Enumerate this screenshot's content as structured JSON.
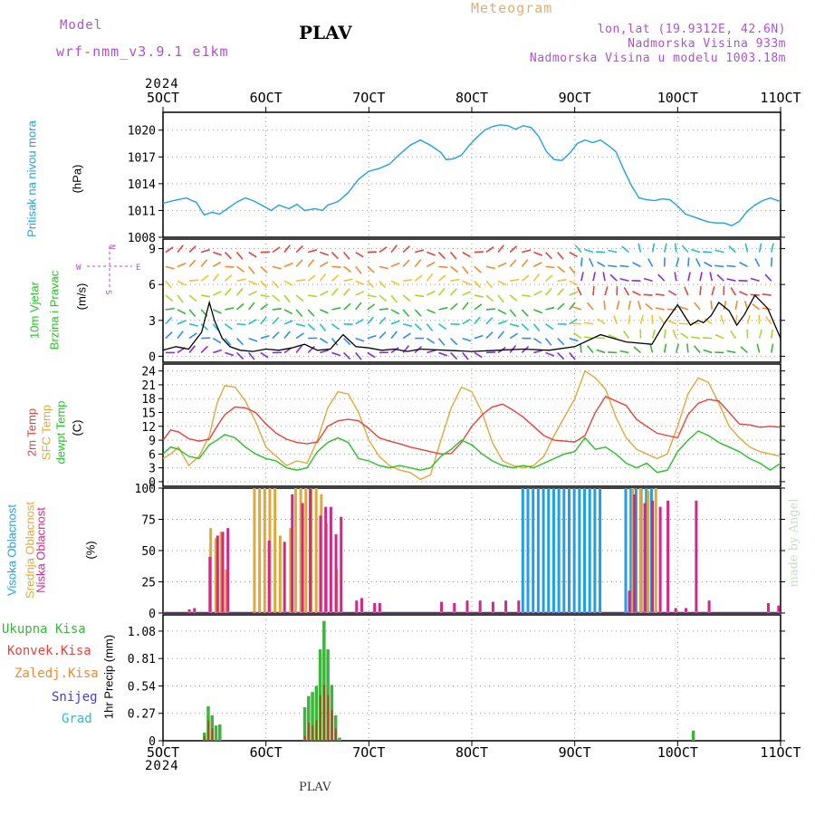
{
  "header": {
    "model_label": "Model",
    "model_name": "wrf-nmm_v3.9.1 e1km",
    "title": "PLAV",
    "meteogram": "Meteogram",
    "lonlat": "lon,lat (19.9312E, 42.6N)",
    "altitude": "Nadmorska Visina 933m",
    "model_altitude": "Nadmorska Visina u modelu 1003.18m",
    "year_top": "2024",
    "year_bottom": "2024",
    "footer_station": "PLAV",
    "credit": "made by Angel"
  },
  "colors": {
    "pressure": "#1fa0e6",
    "t2m": "#e8423a",
    "sfc": "#e0a83c",
    "dew": "#26c226",
    "high": "#1fa0e6",
    "mid": "#e0a83c",
    "low": "#d2268a",
    "total": "#3bb53b",
    "conv": "#e8423a",
    "frozen": "#f28b2e",
    "snow": "#3c3ce0",
    "graupel": "#22c1c3",
    "model": "#b050d8"
  },
  "chart_data": [
    {
      "panel": "pressure",
      "type": "line",
      "x_ticks": [
        "5OCT",
        "6OCT",
        "7OCT",
        "8OCT",
        "9OCT",
        "10OCT",
        "11OCT"
      ],
      "ylim": [
        1008,
        1022
      ],
      "y_ticks": [
        1008,
        1011,
        1014,
        1017,
        1020
      ],
      "ylabel_main": "Pritisak na nivou mora",
      "ylabel_unit": "(hPa)",
      "series": [
        {
          "x": [
            0,
            0.4,
            0.9,
            1.3,
            1.6,
            1.9,
            2.2,
            2.5,
            2.9,
            3.2,
            3.5,
            3.9,
            4.2,
            4.5,
            4.9,
            5.2,
            5.5,
            5.9,
            6.2,
            6.4,
            6.8,
            7.2,
            7.6,
            8.0,
            8.4,
            8.8,
            9.2,
            9.6,
            10.0,
            10.4,
            10.8,
            11.0,
            11.3,
            11.6,
            11.9,
            12.2,
            12.5,
            12.8,
            13.1,
            13.4,
            13.7,
            14.0,
            14.3,
            14.6,
            14.9,
            15.2,
            15.5,
            15.8,
            16.1,
            16.4,
            16.7,
            17.0,
            17.3,
            17.6,
            17.9,
            18.2,
            18.5,
            18.8,
            19.1,
            19.4,
            19.7,
            20.0,
            20.3,
            20.6,
            20.9,
            21.2,
            21.5,
            21.8,
            22.1,
            22.4,
            22.7,
            23.0,
            23.3,
            23.6,
            24.0
          ],
          "values": [
            1011.8,
            1012.1,
            1012.4,
            1011.9,
            1010.5,
            1010.8,
            1010.6,
            1011.2,
            1012.0,
            1012.4,
            1012.1,
            1011.5,
            1011.0,
            1011.6,
            1011.2,
            1011.7,
            1011.0,
            1011.2,
            1011.0,
            1011.6,
            1012.0,
            1013.0,
            1014.5,
            1015.4,
            1015.7,
            1016.2,
            1017.3,
            1018.3,
            1018.9,
            1018.3,
            1017.5,
            1016.7,
            1016.8,
            1017.2,
            1018.3,
            1019.2,
            1020.0,
            1020.4,
            1020.6,
            1020.5,
            1020.1,
            1020.5,
            1020.3,
            1019.3,
            1017.6,
            1016.7,
            1016.6,
            1017.4,
            1018.5,
            1018.9,
            1018.6,
            1018.9,
            1018.3,
            1017.6,
            1015.6,
            1013.8,
            1012.4,
            1012.2,
            1012.1,
            1012.3,
            1012.2,
            1011.5,
            1010.6,
            1010.3,
            1010.0,
            1009.7,
            1009.6,
            1009.6,
            1009.3,
            1009.8,
            1010.9,
            1011.6,
            1012.1,
            1012.4,
            1012.0
          ]
        }
      ]
    },
    {
      "panel": "wind",
      "type": "line",
      "ylim": [
        -0.5,
        9.8
      ],
      "y_ticks": [
        0,
        3,
        6,
        9
      ],
      "ylabel_green": "10m Vjetar",
      "ylabel_green2": "Brzina i Pravac",
      "ylabel_unit": "(m/s)",
      "compass": {
        "n": "N",
        "s": "S",
        "e": "E",
        "w": "W"
      },
      "series": [
        {
          "name": "speed",
          "x": [
            0,
            0.5,
            1.0,
            1.5,
            1.8,
            2.0,
            2.3,
            2.6,
            3.0,
            3.5,
            4.0,
            4.5,
            5.0,
            5.5,
            6.0,
            6.5,
            7.0,
            7.5,
            8.0,
            8.5,
            9.0,
            9.5,
            10.0,
            11.0,
            12.0,
            13.0,
            14.0,
            15.0,
            16.0,
            17.0,
            18.0,
            19.0,
            19.5,
            20.0,
            20.5,
            20.8,
            21.0,
            21.3,
            21.6,
            22.0,
            22.3,
            22.6,
            23.0,
            23.5,
            24.0
          ],
          "values": [
            0.5,
            0.8,
            0.6,
            2.0,
            4.5,
            3.0,
            1.5,
            0.8,
            0.5,
            0.4,
            0.6,
            0.5,
            0.7,
            1.0,
            0.5,
            0.6,
            1.8,
            0.8,
            0.7,
            0.5,
            0.6,
            0.4,
            0.6,
            0.5,
            0.4,
            0.5,
            0.6,
            0.5,
            0.8,
            1.8,
            1.2,
            1.0,
            2.8,
            4.3,
            2.6,
            3.0,
            2.8,
            3.4,
            4.5,
            3.8,
            2.6,
            3.5,
            5.1,
            4.0,
            1.5
          ]
        }
      ]
    },
    {
      "panel": "temperature",
      "type": "line",
      "ylim": [
        -1,
        25.5
      ],
      "y_ticks": [
        0,
        3,
        6,
        9,
        12,
        15,
        18,
        21,
        24
      ],
      "ylabel_red": "2m Temp",
      "ylabel_orange": "SFC Temp",
      "ylabel_green": "dewpt Temp",
      "ylabel_unit": "(C)",
      "series": [
        {
          "name": "2m Temp",
          "x": [
            0,
            0.3,
            0.6,
            1.0,
            1.4,
            1.8,
            2.1,
            2.4,
            2.8,
            3.2,
            3.6,
            4.0,
            4.4,
            4.8,
            5.2,
            5.6,
            6.0,
            6.4,
            6.8,
            7.2,
            7.6,
            8.0,
            8.4,
            8.8,
            9.2,
            9.6,
            10.0,
            10.4,
            10.8,
            11.2,
            11.6,
            12.0,
            12.4,
            12.8,
            13.2,
            13.6,
            14.0,
            14.4,
            14.8,
            15.2,
            15.6,
            16.0,
            16.4,
            16.8,
            17.2,
            17.6,
            18.0,
            18.4,
            18.8,
            19.2,
            19.6,
            20.0,
            20.4,
            20.8,
            21.2,
            21.6,
            22.0,
            22.4,
            22.8,
            23.2,
            23.6,
            24.0
          ],
          "values": [
            9.0,
            11.2,
            10.8,
            9.3,
            8.8,
            9.2,
            12.0,
            14.5,
            16.2,
            16.0,
            15.0,
            12.5,
            10.5,
            9.2,
            8.5,
            8.2,
            8.6,
            12.0,
            13.2,
            13.5,
            13.2,
            11.5,
            9.5,
            8.8,
            8.2,
            7.5,
            7.0,
            6.5,
            6.0,
            6.1,
            8.5,
            12.0,
            14.5,
            16.2,
            16.8,
            15.5,
            14.0,
            12.0,
            10.0,
            9.0,
            8.8,
            8.6,
            10.0,
            15.0,
            18.5,
            17.5,
            16.5,
            13.5,
            12.0,
            10.5,
            10.0,
            9.5,
            14.5,
            17.0,
            17.8,
            17.5,
            15.0,
            12.5,
            12.3,
            11.8,
            12.0,
            11.8
          ]
        },
        {
          "name": "SFC Temp",
          "x": [
            0,
            0.3,
            0.6,
            1.0,
            1.4,
            1.8,
            2.1,
            2.4,
            2.8,
            3.2,
            3.6,
            4.0,
            4.4,
            4.8,
            5.2,
            5.6,
            6.0,
            6.4,
            6.8,
            7.2,
            7.6,
            8.0,
            8.4,
            8.8,
            9.2,
            9.6,
            10.0,
            10.4,
            10.8,
            11.2,
            11.6,
            12.0,
            12.4,
            12.8,
            13.2,
            13.6,
            14.0,
            14.4,
            14.8,
            15.2,
            15.6,
            16.0,
            16.4,
            16.8,
            17.2,
            17.6,
            18.0,
            18.4,
            18.8,
            19.2,
            19.6,
            20.0,
            20.4,
            20.8,
            21.2,
            21.6,
            22.0,
            22.4,
            22.8,
            23.2,
            23.6,
            24.0
          ],
          "values": [
            5.0,
            6.0,
            7.5,
            3.5,
            5.5,
            10.0,
            17.0,
            20.8,
            20.5,
            17.5,
            13.0,
            7.5,
            5.5,
            3.5,
            4.5,
            4.0,
            9.0,
            16.0,
            19.5,
            19.0,
            15.0,
            9.0,
            5.5,
            3.5,
            2.5,
            2.0,
            0.5,
            1.5,
            9.0,
            16.0,
            20.5,
            19.5,
            15.0,
            8.5,
            4.5,
            3.5,
            3.0,
            3.5,
            5.5,
            10.0,
            14.0,
            18.0,
            24.0,
            22.5,
            20.0,
            14.0,
            9.5,
            7.0,
            6.0,
            5.0,
            6.0,
            12.0,
            19.0,
            22.5,
            21.5,
            17.0,
            12.0,
            9.5,
            7.5,
            6.5,
            6.0,
            5.5
          ]
        },
        {
          "name": "dewpt Temp",
          "x": [
            0,
            0.3,
            0.6,
            1.0,
            1.4,
            1.8,
            2.1,
            2.4,
            2.8,
            3.2,
            3.6,
            4.0,
            4.4,
            4.8,
            5.2,
            5.6,
            6.0,
            6.4,
            6.8,
            7.2,
            7.6,
            8.0,
            8.4,
            8.8,
            9.2,
            9.6,
            10.0,
            10.4,
            10.8,
            11.2,
            11.6,
            12.0,
            12.4,
            12.8,
            13.2,
            13.6,
            14.0,
            14.4,
            14.8,
            15.2,
            15.6,
            16.0,
            16.4,
            16.8,
            17.2,
            17.6,
            18.0,
            18.4,
            18.8,
            19.2,
            19.6,
            20.0,
            20.4,
            20.8,
            21.2,
            21.6,
            22.0,
            22.4,
            22.8,
            23.2,
            23.6,
            24.0
          ],
          "values": [
            6.0,
            7.5,
            7.0,
            5.5,
            5.0,
            8.0,
            9.0,
            10.2,
            9.5,
            7.5,
            6.0,
            5.0,
            4.5,
            3.0,
            2.5,
            3.0,
            6.5,
            8.5,
            9.5,
            8.5,
            5.0,
            4.5,
            3.5,
            3.0,
            3.5,
            3.0,
            2.5,
            3.0,
            5.5,
            7.0,
            9.0,
            8.0,
            6.0,
            4.5,
            3.5,
            3.0,
            3.5,
            3.0,
            4.0,
            5.0,
            6.0,
            6.5,
            9.5,
            7.0,
            7.5,
            6.0,
            4.0,
            3.0,
            4.0,
            2.0,
            2.5,
            6.5,
            9.0,
            11.0,
            10.0,
            8.5,
            7.5,
            6.5,
            5.0,
            4.0,
            2.5,
            4.0
          ]
        }
      ]
    },
    {
      "panel": "clouds",
      "type": "bar",
      "ylim": [
        0,
        100
      ],
      "y_ticks": [
        0,
        25,
        50,
        75,
        100
      ],
      "ylabel_high": "Visoka Oblacnost",
      "ylabel_mid": "Srednja Oblacnost",
      "ylabel_low": "Niska Oblacnost",
      "ylabel_unit": "(%)",
      "high": {
        "x": [
          14.0,
          14.2,
          14.4,
          14.6,
          14.8,
          15.0,
          15.2,
          15.4,
          15.6,
          15.8,
          16.0,
          16.2,
          16.4,
          16.6,
          16.8,
          17.0,
          17.2,
          17.4,
          17.6,
          17.8,
          18.0,
          18.2,
          18.4,
          18.6,
          18.8,
          19.0
        ],
        "values": [
          100,
          100,
          100,
          100,
          100,
          100,
          100,
          100,
          100,
          100,
          100,
          100,
          100,
          100,
          100,
          100,
          0,
          0,
          0,
          0,
          100,
          100,
          100,
          100,
          100,
          100
        ]
      },
      "mid": {
        "x": [
          1.8,
          2.0,
          2.2,
          2.4,
          3.5,
          3.7,
          3.9,
          4.1,
          4.3,
          4.5,
          4.9,
          5.1,
          5.3,
          5.5,
          5.7,
          5.9,
          6.1,
          6.3,
          6.7,
          18.2,
          18.5,
          18.8,
          19.1
        ],
        "values": [
          68,
          60,
          65,
          35,
          100,
          100,
          100,
          100,
          100,
          62,
          68,
          100,
          100,
          100,
          100,
          100,
          95,
          72,
          35,
          100,
          100,
          98,
          100
        ]
      },
      "low": {
        "x": [
          0.9,
          1.1,
          1.7,
          2.0,
          2.2,
          2.4,
          4.0,
          4.6,
          4.9,
          5.3,
          5.6,
          6.0,
          6.2,
          6.4,
          6.6,
          6.8,
          7.4,
          7.6,
          8.1,
          8.3,
          10.7,
          11.2,
          11.7,
          12.2,
          12.7,
          13.2,
          13.7,
          18.0,
          18.2,
          18.6,
          18.9,
          19.2,
          19.5,
          19.8,
          20.2,
          20.6,
          21.1,
          23.4,
          23.8
        ],
        "values": [
          3,
          4,
          45,
          62,
          65,
          68,
          58,
          57,
          95,
          88,
          100,
          78,
          85,
          85,
          63,
          77,
          10,
          12,
          8,
          8,
          9,
          8,
          10,
          10,
          9,
          10,
          10,
          18,
          95,
          88,
          90,
          85,
          90,
          4,
          4,
          90,
          10,
          8,
          6
        ]
      }
    },
    {
      "panel": "precip",
      "type": "bar",
      "ylim": [
        0,
        1.24
      ],
      "y_ticks": [
        0,
        0.27,
        0.54,
        0.81,
        1.08
      ],
      "y_tick_labels": [
        "0",
        "0.27",
        "0.54",
        "0.81",
        "1.08"
      ],
      "ylabel_unit": "1hr Precip (mm)",
      "legend": [
        "Ukupna Kisa",
        "Konvek.Kisa",
        "Zaledj.Kisa",
        "Snijeg",
        "Grad"
      ],
      "x": [
        1.6,
        1.75,
        1.9,
        2.05,
        2.2,
        5.5,
        5.65,
        5.8,
        5.95,
        6.1,
        6.25,
        6.4,
        6.55,
        6.7,
        6.85,
        20.6
      ],
      "total": [
        0.08,
        0.34,
        0.25,
        0.15,
        0.16,
        0.33,
        0.44,
        0.48,
        0.54,
        0.9,
        1.18,
        0.9,
        0.55,
        0.25,
        0.03,
        0.1
      ],
      "conv": [
        0.04,
        0.2,
        0.12,
        0.0,
        0.0,
        0.05,
        0.18,
        0.15,
        0.2,
        0.45,
        0.55,
        0.45,
        0.3,
        0.12,
        0.0,
        0.0
      ]
    }
  ]
}
